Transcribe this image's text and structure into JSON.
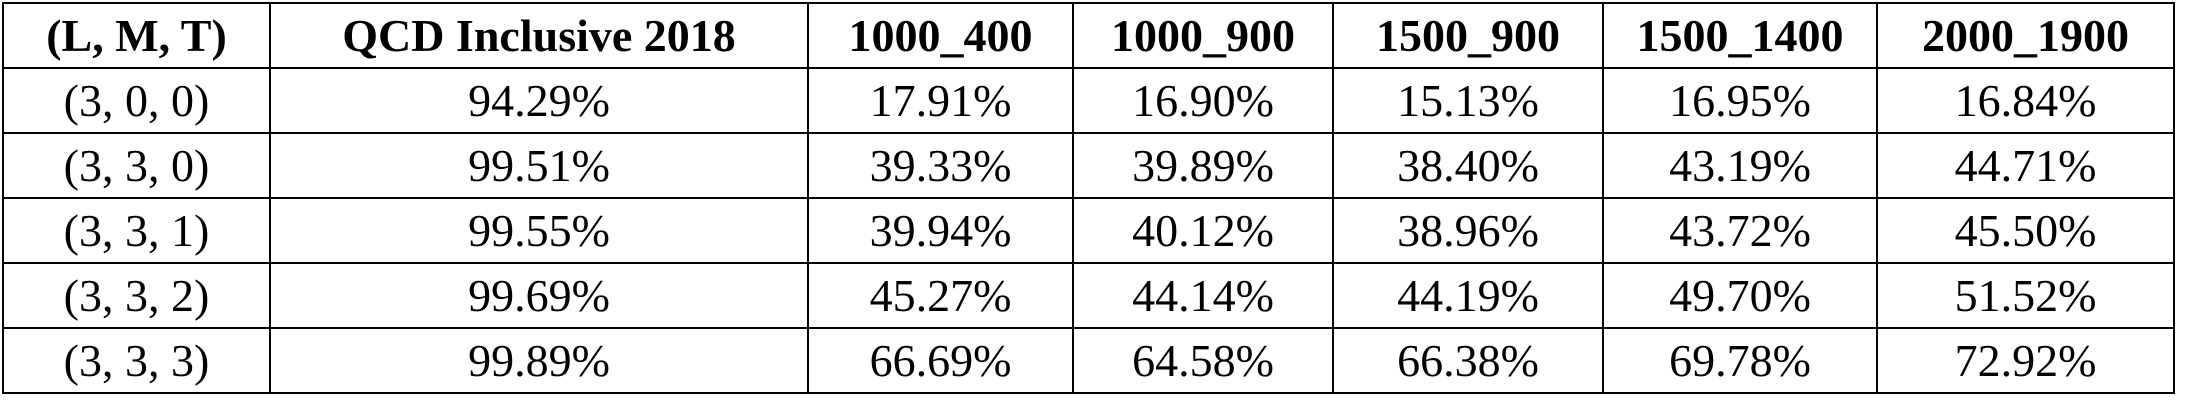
{
  "table": {
    "headers": [
      "(L, M, T)",
      "QCD Inclusive 2018",
      "1000_400",
      "1000_900",
      "1500_900",
      "1500_1400",
      "2000_1900"
    ],
    "rows": [
      [
        "(3, 0, 0)",
        "94.29%",
        "17.91%",
        "16.90%",
        "15.13%",
        "16.95%",
        "16.84%"
      ],
      [
        "(3, 3, 0)",
        "99.51%",
        "39.33%",
        "39.89%",
        "38.40%",
        "43.19%",
        "44.71%"
      ],
      [
        "(3, 3, 1)",
        "99.55%",
        "39.94%",
        "40.12%",
        "38.96%",
        "43.72%",
        "45.50%"
      ],
      [
        "(3, 3, 2)",
        "99.69%",
        "45.27%",
        "44.14%",
        "44.19%",
        "49.70%",
        "51.52%"
      ],
      [
        "(3, 3, 3)",
        "99.89%",
        "66.69%",
        "64.58%",
        "66.38%",
        "69.78%",
        "72.92%"
      ]
    ]
  }
}
